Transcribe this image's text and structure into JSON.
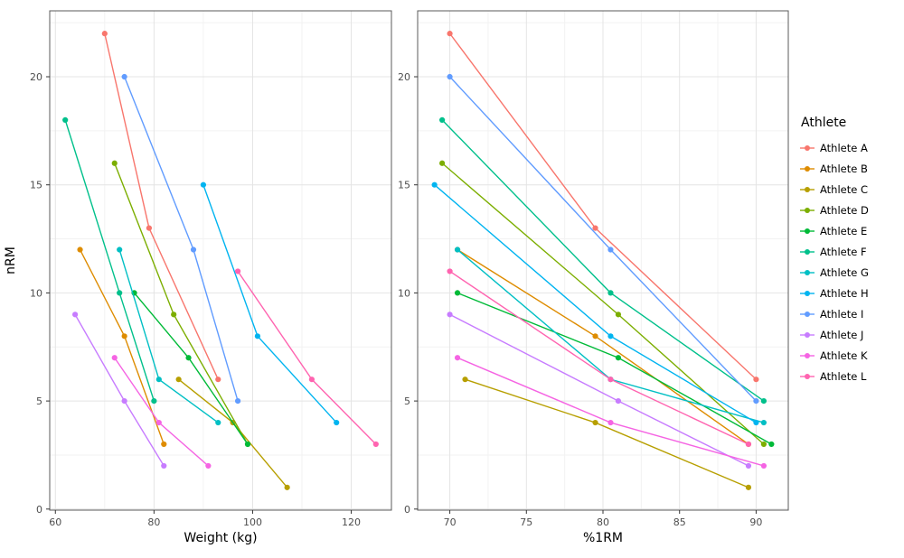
{
  "legend": {
    "title": "Athlete"
  },
  "chart_data": {
    "type": "line",
    "grid": "on",
    "legend_position": "right",
    "panels": [
      {
        "xlabel": "Weight (kg)",
        "ylabel": "nRM",
        "x_key": "weight",
        "x_ticks": [
          60,
          80,
          100,
          120
        ],
        "y_ticks": [
          0,
          5,
          10,
          15,
          20
        ],
        "xlim": [
          58.85,
          128.15
        ],
        "ylim": [
          -0.05,
          23.05
        ]
      },
      {
        "xlabel": "%1RM",
        "ylabel": "",
        "x_key": "pct1rm",
        "x_ticks": [
          70,
          75,
          80,
          85,
          90
        ],
        "y_ticks": [
          0,
          5,
          10,
          15,
          20
        ],
        "xlim": [
          67.9,
          92.1
        ],
        "ylim": [
          -0.05,
          23.05
        ]
      }
    ],
    "series": [
      {
        "name": "Athlete A",
        "color": "#F8766D",
        "weight": [
          70,
          79,
          93
        ],
        "pct1rm": [
          70,
          79.5,
          90
        ],
        "nrm": [
          22,
          13,
          6
        ]
      },
      {
        "name": "Athlete B",
        "color": "#DE8C00",
        "weight": [
          65,
          74,
          82
        ],
        "pct1rm": [
          70.5,
          79.5,
          89.5
        ],
        "nrm": [
          12,
          8,
          3
        ]
      },
      {
        "name": "Athlete C",
        "color": "#B79F00",
        "weight": [
          85,
          96,
          107
        ],
        "pct1rm": [
          71,
          79.5,
          89.5
        ],
        "nrm": [
          6,
          4,
          1
        ]
      },
      {
        "name": "Athlete D",
        "color": "#7CAE00",
        "weight": [
          72,
          84,
          99
        ],
        "pct1rm": [
          69.5,
          81,
          90.5
        ],
        "nrm": [
          16,
          9,
          3
        ]
      },
      {
        "name": "Athlete E",
        "color": "#00BA38",
        "weight": [
          76,
          87,
          99
        ],
        "pct1rm": [
          70.5,
          81,
          91
        ],
        "nrm": [
          10,
          7,
          3
        ]
      },
      {
        "name": "Athlete F",
        "color": "#00C08B",
        "weight": [
          62,
          73,
          80
        ],
        "pct1rm": [
          69.5,
          80.5,
          90.5
        ],
        "nrm": [
          18,
          10,
          5
        ]
      },
      {
        "name": "Athlete G",
        "color": "#00BFC4",
        "weight": [
          73,
          81,
          93
        ],
        "pct1rm": [
          70.5,
          80.5,
          90.5
        ],
        "nrm": [
          12,
          6,
          4
        ]
      },
      {
        "name": "Athlete H",
        "color": "#00B4F0",
        "weight": [
          90,
          101,
          117
        ],
        "pct1rm": [
          69,
          80.5,
          90
        ],
        "nrm": [
          15,
          8,
          4
        ]
      },
      {
        "name": "Athlete I",
        "color": "#619CFF",
        "weight": [
          74,
          88,
          97
        ],
        "pct1rm": [
          70,
          80.5,
          90
        ],
        "nrm": [
          20,
          12,
          5
        ]
      },
      {
        "name": "Athlete J",
        "color": "#C77CFF",
        "weight": [
          64,
          74,
          82
        ],
        "pct1rm": [
          70,
          81,
          89.5
        ],
        "nrm": [
          9,
          5,
          2
        ]
      },
      {
        "name": "Athlete K",
        "color": "#F564E3",
        "weight": [
          72,
          81,
          91
        ],
        "pct1rm": [
          70.5,
          80.5,
          90.5
        ],
        "nrm": [
          7,
          4,
          2
        ]
      },
      {
        "name": "Athlete L",
        "color": "#FF64B0",
        "weight": [
          97,
          112,
          125
        ],
        "pct1rm": [
          70,
          80.5,
          89.5
        ],
        "nrm": [
          11,
          6,
          3
        ]
      }
    ]
  }
}
